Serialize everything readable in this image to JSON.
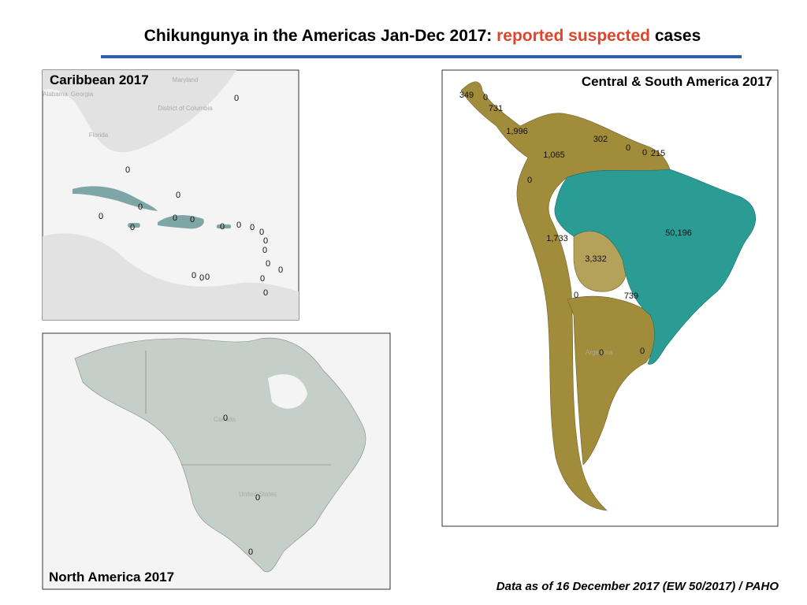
{
  "title": {
    "prefix": "Chikungunya in the Americas Jan-Dec 2017:",
    "highlight": "reported suspected",
    "suffix": "cases"
  },
  "panels": [
    {
      "title": "Caribbean 2017",
      "labels": [
        "0",
        "0",
        "0",
        "0",
        "0",
        "0",
        "0",
        "0",
        "0",
        "0",
        "0",
        "0",
        "0",
        "0",
        "0",
        "0",
        "0",
        "0",
        "0",
        "0",
        "0"
      ]
    },
    {
      "title": "Central & South America  2017",
      "labels": [
        "349",
        "0",
        "731",
        "1,996",
        "302",
        "0",
        "0",
        "215",
        "1,065",
        "0",
        "50,196",
        "1,733",
        "3,332",
        "0",
        "739",
        "0",
        "0"
      ]
    },
    {
      "title": "North America 2017",
      "labels": [
        "0",
        "0",
        "0"
      ]
    }
  ],
  "basemap_labels": [
    "Maryland",
    "Alabama",
    "Georgia",
    "District of Columbia",
    "Florida",
    "Canada",
    "United States",
    "Argentina"
  ],
  "footnote": "Data as of 16 December 2017 (EW 50/2017) / PAHO"
}
